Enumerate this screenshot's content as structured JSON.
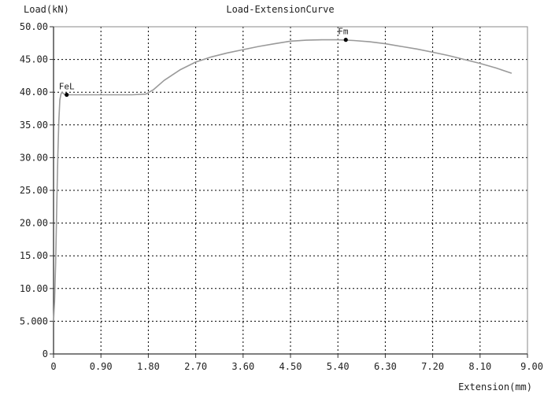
{
  "chart_data": {
    "type": "line",
    "title": "Load-ExtensionCurve",
    "xlabel": "Extension(mm)",
    "ylabel": "Load(kN)",
    "xlim": [
      0,
      9.0
    ],
    "ylim": [
      0,
      50.0
    ],
    "grid": true,
    "x_ticks": [
      "0",
      "0.90",
      "1.80",
      "2.70",
      "3.60",
      "4.50",
      "5.40",
      "6.30",
      "7.20",
      "8.10",
      "9.00"
    ],
    "y_ticks": [
      "0",
      "5.000",
      "10.00",
      "15.00",
      "20.00",
      "25.00",
      "30.00",
      "35.00",
      "40.00",
      "45.00",
      "50.00"
    ],
    "series": [
      {
        "x": [
          0.0,
          0.02,
          0.04,
          0.06,
          0.08,
          0.1,
          0.12,
          0.14,
          0.16,
          0.2,
          0.3,
          0.5,
          1.0,
          1.5,
          1.75,
          1.9,
          2.1,
          2.4,
          2.7,
          3.0,
          3.3,
          3.6,
          3.9,
          4.2,
          4.5,
          4.8,
          5.1,
          5.4,
          5.7,
          6.0,
          6.3,
          6.6,
          6.9,
          7.2,
          7.5,
          7.8,
          8.1,
          8.4,
          8.7
        ],
        "y": [
          5.0,
          8.0,
          14.0,
          22.0,
          30.0,
          35.5,
          38.8,
          39.7,
          40.0,
          39.7,
          39.6,
          39.6,
          39.6,
          39.6,
          39.7,
          40.4,
          41.8,
          43.4,
          44.6,
          45.4,
          46.0,
          46.5,
          47.0,
          47.4,
          47.8,
          47.95,
          48.0,
          48.0,
          47.9,
          47.7,
          47.4,
          47.0,
          46.6,
          46.1,
          45.6,
          45.0,
          44.4,
          43.7,
          42.9
        ]
      }
    ],
    "annotations": [
      {
        "label": "Fm",
        "x": 5.55,
        "y": 48.0
      },
      {
        "label": "FeL",
        "x": 0.25,
        "y": 39.6
      }
    ]
  },
  "colors": {
    "curve": "#9a9a9a",
    "axis": "#333333",
    "grid": "#000000",
    "marker": "#000000"
  }
}
